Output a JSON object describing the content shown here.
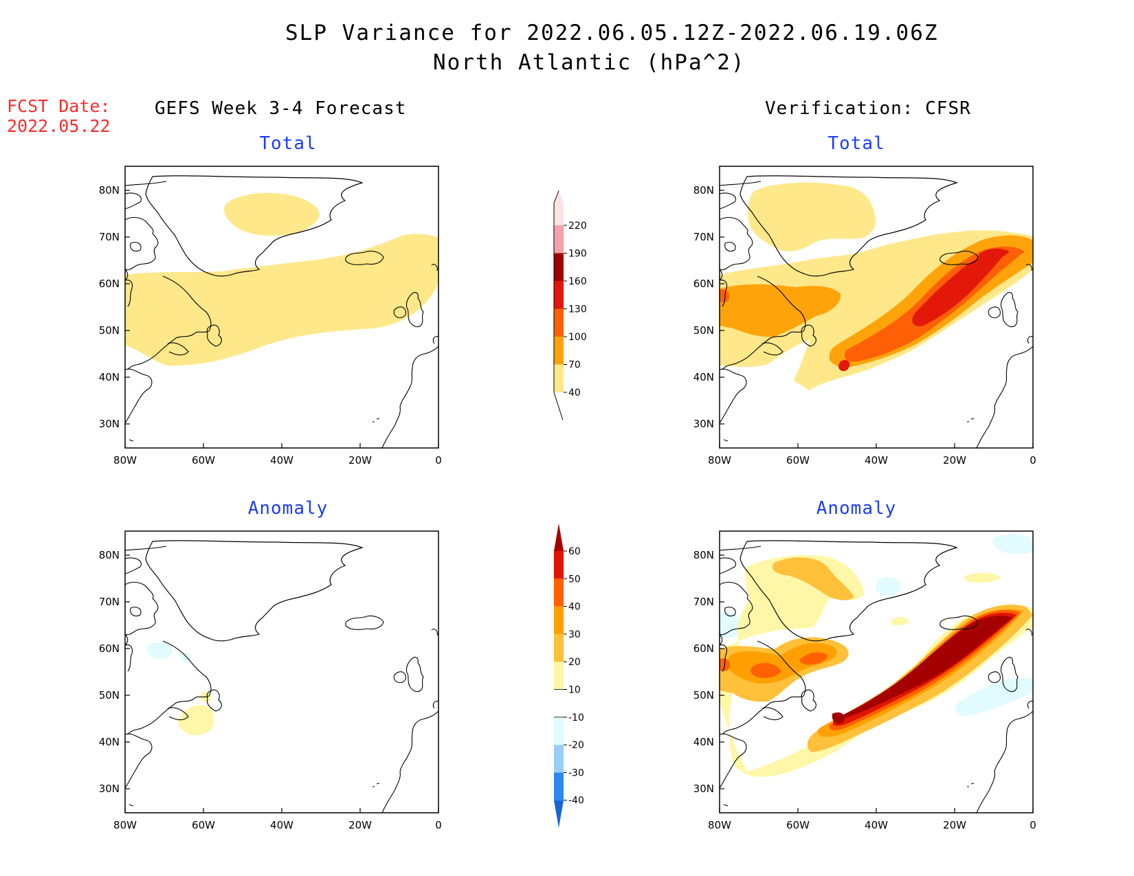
{
  "header": {
    "title": "SLP Variance for 2022.06.05.12Z-2022.06.19.06Z",
    "subtitle": "North Atlantic (hPa^2)"
  },
  "forecast_date": {
    "label": "FCST Date:",
    "value": "2022.05.22"
  },
  "columns": {
    "left": "GEFS Week 3-4 Forecast",
    "right": "Verification: CFSR"
  },
  "panels": [
    {
      "id": "gefs-total",
      "label": "Total"
    },
    {
      "id": "cfsr-total",
      "label": "Total"
    },
    {
      "id": "gefs-anomaly",
      "label": "Anomaly"
    },
    {
      "id": "cfsr-anomaly",
      "label": "Anomaly"
    }
  ],
  "axes": {
    "lat_labels": [
      "80N",
      "70N",
      "60N",
      "50N",
      "40N",
      "30N"
    ],
    "lon_labels": [
      "80W",
      "60W",
      "40W",
      "20W",
      "0"
    ]
  },
  "colorbars": {
    "total": {
      "labels": [
        "40",
        "70",
        "100",
        "130",
        "160",
        "190",
        "220"
      ],
      "colors": [
        "#fee88a",
        "#ffa30a",
        "#ff6005",
        "#e31808",
        "#a20000",
        "#f2a2a8",
        "#fde2e4"
      ]
    },
    "anomaly": {
      "labels": [
        "-40",
        "-30",
        "-20",
        "-10",
        "10",
        "20",
        "30",
        "40",
        "50",
        "60"
      ],
      "colors": [
        "#1565d8",
        "#2e87f0",
        "#96cef8",
        "#e1fbff",
        "#ffffff",
        "#fff7a8",
        "#ffc03a",
        "#ffa000",
        "#ff6000",
        "#e11500",
        "#a50000"
      ]
    }
  }
}
